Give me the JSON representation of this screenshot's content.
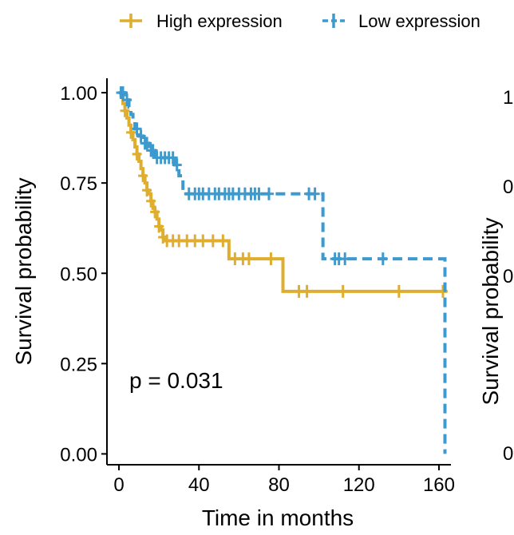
{
  "chart_data": [
    {
      "type": "line",
      "subtype": "kaplan-meier",
      "xlabel": "Time in months",
      "ylabel": "Survival probability",
      "xlim": [
        -6,
        166
      ],
      "ylim": [
        -0.03,
        1.04
      ],
      "x_ticks": [
        "0",
        "40",
        "80",
        "120",
        "160"
      ],
      "y_ticks": [
        "0.00",
        "0.25",
        "0.50",
        "0.75",
        "1.00"
      ],
      "annotation": "p = 0.031",
      "legend_position": "top",
      "grid": false,
      "series": [
        {
          "name": "High expression",
          "color": "#DFAE2E",
          "dash": "solid",
          "steps": [
            [
              0,
              1.0
            ],
            [
              1,
              0.99
            ],
            [
              2,
              0.97
            ],
            [
              3,
              0.95
            ],
            [
              4,
              0.93
            ],
            [
              5,
              0.91
            ],
            [
              6,
              0.89
            ],
            [
              7,
              0.87
            ],
            [
              8,
              0.85
            ],
            [
              9,
              0.83
            ],
            [
              10,
              0.81
            ],
            [
              11,
              0.79
            ],
            [
              12,
              0.77
            ],
            [
              13,
              0.75
            ],
            [
              14,
              0.73
            ],
            [
              15,
              0.72
            ],
            [
              16,
              0.7
            ],
            [
              17,
              0.68
            ],
            [
              18,
              0.67
            ],
            [
              19,
              0.65
            ],
            [
              20,
              0.63
            ],
            [
              21,
              0.62
            ],
            [
              22,
              0.6
            ],
            [
              23,
              0.59
            ],
            [
              55,
              0.54
            ],
            [
              82,
              0.45
            ],
            [
              164,
              0.45
            ]
          ],
          "censors": [
            [
              3,
              0.95
            ],
            [
              6,
              0.89
            ],
            [
              9,
              0.83
            ],
            [
              12,
              0.77
            ],
            [
              14,
              0.73
            ],
            [
              16,
              0.7
            ],
            [
              18,
              0.67
            ],
            [
              20,
              0.63
            ],
            [
              22,
              0.6
            ],
            [
              24,
              0.59
            ],
            [
              27,
              0.59
            ],
            [
              30,
              0.59
            ],
            [
              34,
              0.59
            ],
            [
              38,
              0.59
            ],
            [
              42,
              0.59
            ],
            [
              47,
              0.59
            ],
            [
              52,
              0.59
            ],
            [
              58,
              0.54
            ],
            [
              62,
              0.54
            ],
            [
              65,
              0.54
            ],
            [
              76,
              0.54
            ],
            [
              90,
              0.45
            ],
            [
              94,
              0.45
            ],
            [
              112,
              0.45
            ],
            [
              140,
              0.45
            ],
            [
              162,
              0.45
            ]
          ]
        },
        {
          "name": "Low expression",
          "color": "#3D9ACF",
          "dash": "dashed",
          "steps": [
            [
              0,
              1.0
            ],
            [
              3,
              0.98
            ],
            [
              5,
              0.96
            ],
            [
              6,
              0.94
            ],
            [
              7,
              0.92
            ],
            [
              8,
              0.9
            ],
            [
              10,
              0.88
            ],
            [
              12,
              0.86
            ],
            [
              15,
              0.84
            ],
            [
              18,
              0.82
            ],
            [
              28,
              0.8
            ],
            [
              30,
              0.77
            ],
            [
              32,
              0.72
            ],
            [
              102,
              0.54
            ],
            [
              163,
              0.54
            ],
            [
              163,
              0.0
            ]
          ],
          "censors": [
            [
              1,
              1.0
            ],
            [
              2,
              1.0
            ],
            [
              4,
              0.98
            ],
            [
              9,
              0.9
            ],
            [
              11,
              0.88
            ],
            [
              13,
              0.86
            ],
            [
              14,
              0.86
            ],
            [
              16,
              0.84
            ],
            [
              17,
              0.84
            ],
            [
              19,
              0.82
            ],
            [
              21,
              0.82
            ],
            [
              23,
              0.82
            ],
            [
              25,
              0.82
            ],
            [
              27,
              0.82
            ],
            [
              29,
              0.8
            ],
            [
              35,
              0.72
            ],
            [
              38,
              0.72
            ],
            [
              40,
              0.72
            ],
            [
              42,
              0.72
            ],
            [
              45,
              0.72
            ],
            [
              48,
              0.72
            ],
            [
              50,
              0.72
            ],
            [
              53,
              0.72
            ],
            [
              55,
              0.72
            ],
            [
              57,
              0.72
            ],
            [
              60,
              0.72
            ],
            [
              63,
              0.72
            ],
            [
              66,
              0.72
            ],
            [
              68,
              0.72
            ],
            [
              70,
              0.72
            ],
            [
              75,
              0.72
            ],
            [
              95,
              0.72
            ],
            [
              98,
              0.72
            ],
            [
              108,
              0.54
            ],
            [
              110,
              0.54
            ],
            [
              113,
              0.54
            ],
            [
              132,
              0.54
            ]
          ]
        }
      ]
    },
    {
      "type": "line",
      "subtype": "kaplan-meier",
      "xlabel": "",
      "ylabel": "Survival probability",
      "y_ticks_visible": [
        "0",
        "0",
        "0",
        "1"
      ],
      "partial": true
    }
  ]
}
